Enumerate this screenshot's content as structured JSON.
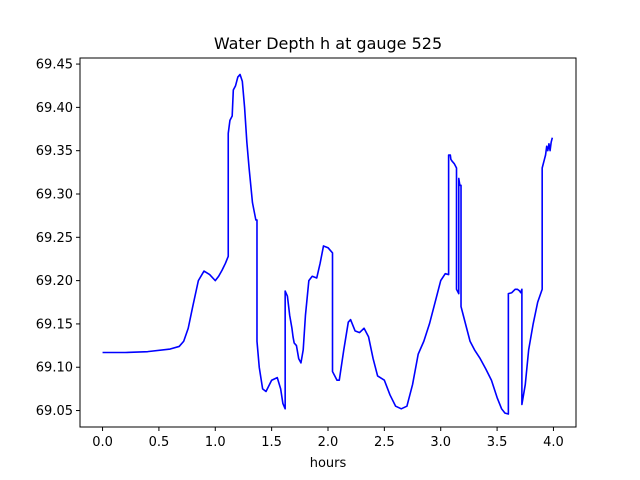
{
  "chart_data": {
    "type": "line",
    "title": "Water Depth h at gauge 525",
    "xlabel": "hours",
    "ylabel": "",
    "xlim": [
      -0.2,
      4.2
    ],
    "ylim": [
      69.031,
      69.457
    ],
    "xticks": [
      0.0,
      0.5,
      1.0,
      1.5,
      2.0,
      2.5,
      3.0,
      3.5,
      4.0
    ],
    "xtick_labels": [
      "0.0",
      "0.5",
      "1.0",
      "1.5",
      "2.0",
      "2.5",
      "3.0",
      "3.5",
      "4.0"
    ],
    "yticks": [
      69.05,
      69.1,
      69.15,
      69.2,
      69.25,
      69.3,
      69.35,
      69.4,
      69.45
    ],
    "ytick_labels": [
      "69.05",
      "69.10",
      "69.15",
      "69.20",
      "69.25",
      "69.30",
      "69.35",
      "69.40",
      "69.45"
    ],
    "grid": false,
    "series": [
      {
        "color": "#0000ff",
        "x": [
          0.0,
          0.2,
          0.4,
          0.6,
          0.68,
          0.72,
          0.76,
          0.8,
          0.85,
          0.9,
          0.95,
          1.0,
          1.03,
          1.06,
          1.09,
          1.115,
          1.115,
          1.13,
          1.15,
          1.16,
          1.18,
          1.2,
          1.22,
          1.24,
          1.26,
          1.28,
          1.3,
          1.33,
          1.36,
          1.37,
          1.37,
          1.39,
          1.42,
          1.45,
          1.5,
          1.55,
          1.58,
          1.6,
          1.62,
          1.62,
          1.64,
          1.66,
          1.68,
          1.69,
          1.7,
          1.72,
          1.74,
          1.76,
          1.78,
          1.8,
          1.83,
          1.86,
          1.9,
          1.93,
          1.96,
          2.0,
          2.02,
          2.04,
          2.04,
          2.06,
          2.08,
          2.1,
          2.14,
          2.18,
          2.2,
          2.24,
          2.28,
          2.32,
          2.36,
          2.4,
          2.44,
          2.5,
          2.55,
          2.6,
          2.65,
          2.7,
          2.75,
          2.8,
          2.85,
          2.9,
          2.95,
          3.0,
          3.04,
          3.07,
          3.07,
          3.085,
          3.09,
          3.1,
          3.12,
          3.14,
          3.14,
          3.16,
          3.16,
          3.17,
          3.18,
          3.18,
          3.2,
          3.23,
          3.26,
          3.3,
          3.35,
          3.4,
          3.45,
          3.5,
          3.54,
          3.57,
          3.6,
          3.6,
          3.63,
          3.66,
          3.68,
          3.7,
          3.71,
          3.72,
          3.72,
          3.75,
          3.78,
          3.82,
          3.86,
          3.9,
          3.9,
          3.92,
          3.93,
          3.94,
          3.95,
          3.96,
          3.97,
          3.98,
          3.99
        ],
        "y": [
          69.117,
          69.117,
          69.118,
          69.121,
          69.124,
          69.13,
          69.145,
          69.17,
          69.2,
          69.211,
          69.207,
          69.2,
          69.205,
          69.212,
          69.22,
          69.228,
          69.37,
          69.385,
          69.39,
          69.42,
          69.425,
          69.435,
          69.438,
          69.43,
          69.4,
          69.36,
          69.33,
          69.29,
          69.27,
          69.27,
          69.13,
          69.1,
          69.075,
          69.072,
          69.085,
          69.088,
          69.075,
          69.058,
          69.052,
          69.188,
          69.182,
          69.16,
          69.145,
          69.135,
          69.128,
          69.125,
          69.11,
          69.105,
          69.12,
          69.16,
          69.2,
          69.205,
          69.203,
          69.22,
          69.24,
          69.238,
          69.235,
          69.232,
          69.095,
          69.09,
          69.085,
          69.085,
          69.12,
          69.152,
          69.155,
          69.142,
          69.14,
          69.145,
          69.135,
          69.11,
          69.09,
          69.085,
          69.068,
          69.055,
          69.052,
          69.055,
          69.08,
          69.115,
          69.13,
          69.15,
          69.175,
          69.2,
          69.208,
          69.207,
          69.345,
          69.345,
          69.34,
          69.338,
          69.335,
          69.33,
          69.19,
          69.185,
          69.318,
          69.31,
          69.31,
          69.17,
          69.16,
          69.145,
          69.13,
          69.12,
          69.11,
          69.098,
          69.085,
          69.065,
          69.052,
          69.047,
          69.046,
          69.185,
          69.186,
          69.19,
          69.19,
          69.188,
          69.186,
          69.19,
          69.057,
          69.08,
          69.12,
          69.15,
          69.175,
          69.19,
          69.33,
          69.34,
          69.345,
          69.355,
          69.35,
          69.358,
          69.35,
          69.36,
          69.365
        ]
      }
    ]
  }
}
